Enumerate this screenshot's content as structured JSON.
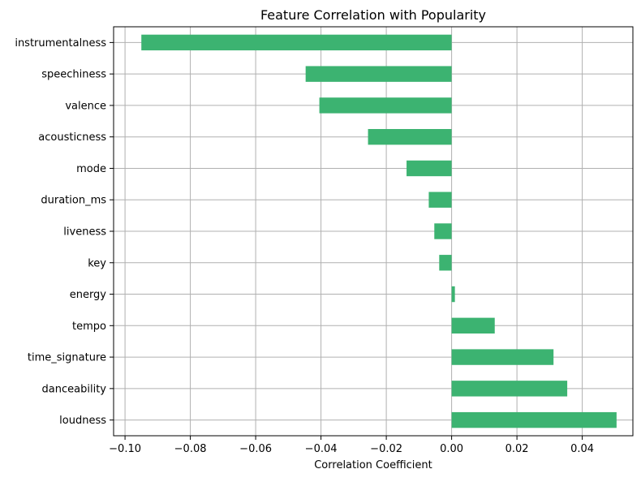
{
  "chart_data": {
    "type": "bar",
    "orientation": "horizontal",
    "title": "Feature Correlation with Popularity",
    "xlabel": "Correlation Coefficient",
    "ylabel": "",
    "xlim": [
      -0.1035,
      0.0555
    ],
    "xticks": [
      -0.1,
      -0.08,
      -0.06,
      -0.04,
      -0.02,
      0.0,
      0.02,
      0.04
    ],
    "xtick_labels": [
      "−0.10",
      "−0.08",
      "−0.06",
      "−0.04",
      "−0.02",
      "0.00",
      "0.02",
      "0.04"
    ],
    "grid": true,
    "bar_color": "#3cb371",
    "grid_color": "#b0b0b0",
    "categories": [
      "instrumentalness",
      "speechiness",
      "valence",
      "acousticness",
      "mode",
      "duration_ms",
      "liveness",
      "key",
      "energy",
      "tempo",
      "time_signature",
      "danceability",
      "loudness"
    ],
    "values": [
      -0.095,
      -0.0447,
      -0.0405,
      -0.0256,
      -0.0138,
      -0.007,
      -0.0053,
      -0.0038,
      0.001,
      0.0132,
      0.0312,
      0.0354,
      0.0505
    ]
  }
}
